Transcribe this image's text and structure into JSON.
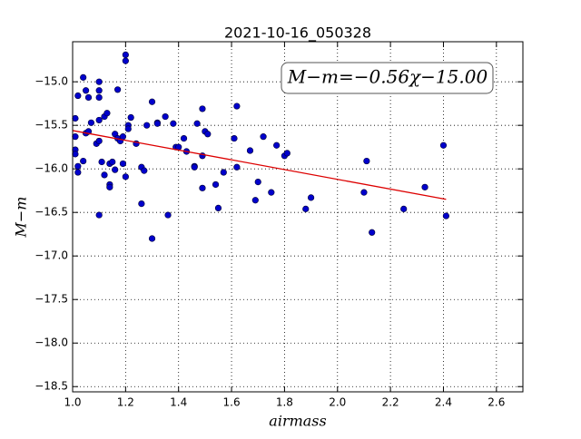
{
  "chart_data": {
    "type": "scatter",
    "title": "2021-10-16_050328",
    "x_label": "airmass",
    "y_label": "M−m",
    "annotation": "M−m=−0.56χ−15.00",
    "color": "#0000cc",
    "x": [
      1.01,
      1.01,
      1.01,
      1.01,
      1.02,
      1.02,
      1.02,
      1.04,
      1.05,
      1.06,
      1.05,
      1.04,
      1.07,
      1.06,
      1.09,
      1.1,
      1.1,
      1.1,
      1.1,
      1.1,
      1.1,
      1.11,
      1.12,
      1.12,
      1.13,
      1.14,
      1.14,
      1.14,
      1.15,
      1.16,
      1.16,
      1.17,
      1.17,
      1.18,
      1.19,
      1.19,
      1.2,
      1.2,
      1.2,
      1.21,
      1.21,
      1.22,
      1.24,
      1.26,
      1.26,
      1.27,
      1.28,
      1.3,
      1.3,
      1.32,
      1.32,
      1.35,
      1.36,
      1.38,
      1.39,
      1.4,
      1.42,
      1.43,
      1.46,
      1.46,
      1.47,
      1.49,
      1.49,
      1.49,
      1.5,
      1.51,
      1.54,
      1.55,
      1.57,
      1.61,
      1.62,
      1.62,
      1.67,
      1.69,
      1.7,
      1.72,
      1.75,
      1.77,
      1.8,
      1.81,
      1.88,
      1.9,
      2.1,
      2.11,
      2.13,
      2.25,
      2.33,
      2.4,
      2.41
    ],
    "y": [
      -15.42,
      -15.63,
      -15.78,
      -15.83,
      -16.04,
      -15.97,
      -15.16,
      -14.95,
      -15.1,
      -15.18,
      -15.59,
      -15.91,
      -15.47,
      -15.57,
      -15.71,
      -15.0,
      -15.1,
      -15.18,
      -15.68,
      -15.44,
      -16.53,
      -15.92,
      -15.4,
      -16.07,
      -15.36,
      -15.94,
      -16.18,
      -16.21,
      -15.92,
      -15.6,
      -16.01,
      -15.09,
      -15.65,
      -15.68,
      -15.63,
      -15.94,
      -14.69,
      -14.76,
      -16.09,
      -15.5,
      -15.54,
      -15.41,
      -15.71,
      -15.98,
      -16.4,
      -16.02,
      -15.5,
      -15.23,
      -16.8,
      -15.47,
      -15.48,
      -15.4,
      -16.53,
      -15.48,
      -15.75,
      -15.75,
      -15.65,
      -15.8,
      -15.97,
      -15.98,
      -15.48,
      -15.85,
      -16.22,
      -15.31,
      -15.57,
      -15.6,
      -16.18,
      -16.45,
      -16.04,
      -15.65,
      -15.98,
      -15.28,
      -15.79,
      -16.36,
      -16.15,
      -15.63,
      -16.27,
      -15.73,
      -15.85,
      -15.82,
      -16.46,
      -16.33,
      -16.27,
      -15.91,
      -16.73,
      -16.46,
      -16.21,
      -15.73,
      -16.54
    ],
    "fit": {
      "color": "#dd0000",
      "x": [
        1.0,
        2.41
      ],
      "y": [
        -15.56,
        -16.35
      ]
    },
    "xlim": [
      1.0,
      2.7
    ],
    "ylim": [
      -18.56,
      -14.54
    ],
    "xticks": [
      {
        "value": 1.0,
        "label": "1.0"
      },
      {
        "value": 1.2,
        "label": "1.2"
      },
      {
        "value": 1.4,
        "label": "1.4"
      },
      {
        "value": 1.6,
        "label": "1.6"
      },
      {
        "value": 1.8,
        "label": "1.8"
      },
      {
        "value": 2.0,
        "label": "2.0"
      },
      {
        "value": 2.2,
        "label": "2.2"
      },
      {
        "value": 2.4,
        "label": "2.4"
      },
      {
        "value": 2.6,
        "label": "2.6"
      }
    ],
    "yticks": [
      {
        "value": -18.5,
        "label": "−18.5"
      },
      {
        "value": -18.0,
        "label": "−18.0"
      },
      {
        "value": -17.5,
        "label": "−17.5"
      },
      {
        "value": -17.0,
        "label": "−17.0"
      },
      {
        "value": -16.5,
        "label": "−16.5"
      },
      {
        "value": -16.0,
        "label": "−16.0"
      },
      {
        "value": -15.5,
        "label": "−15.5"
      },
      {
        "value": -15.0,
        "label": "−15.0"
      }
    ],
    "grid": true
  }
}
